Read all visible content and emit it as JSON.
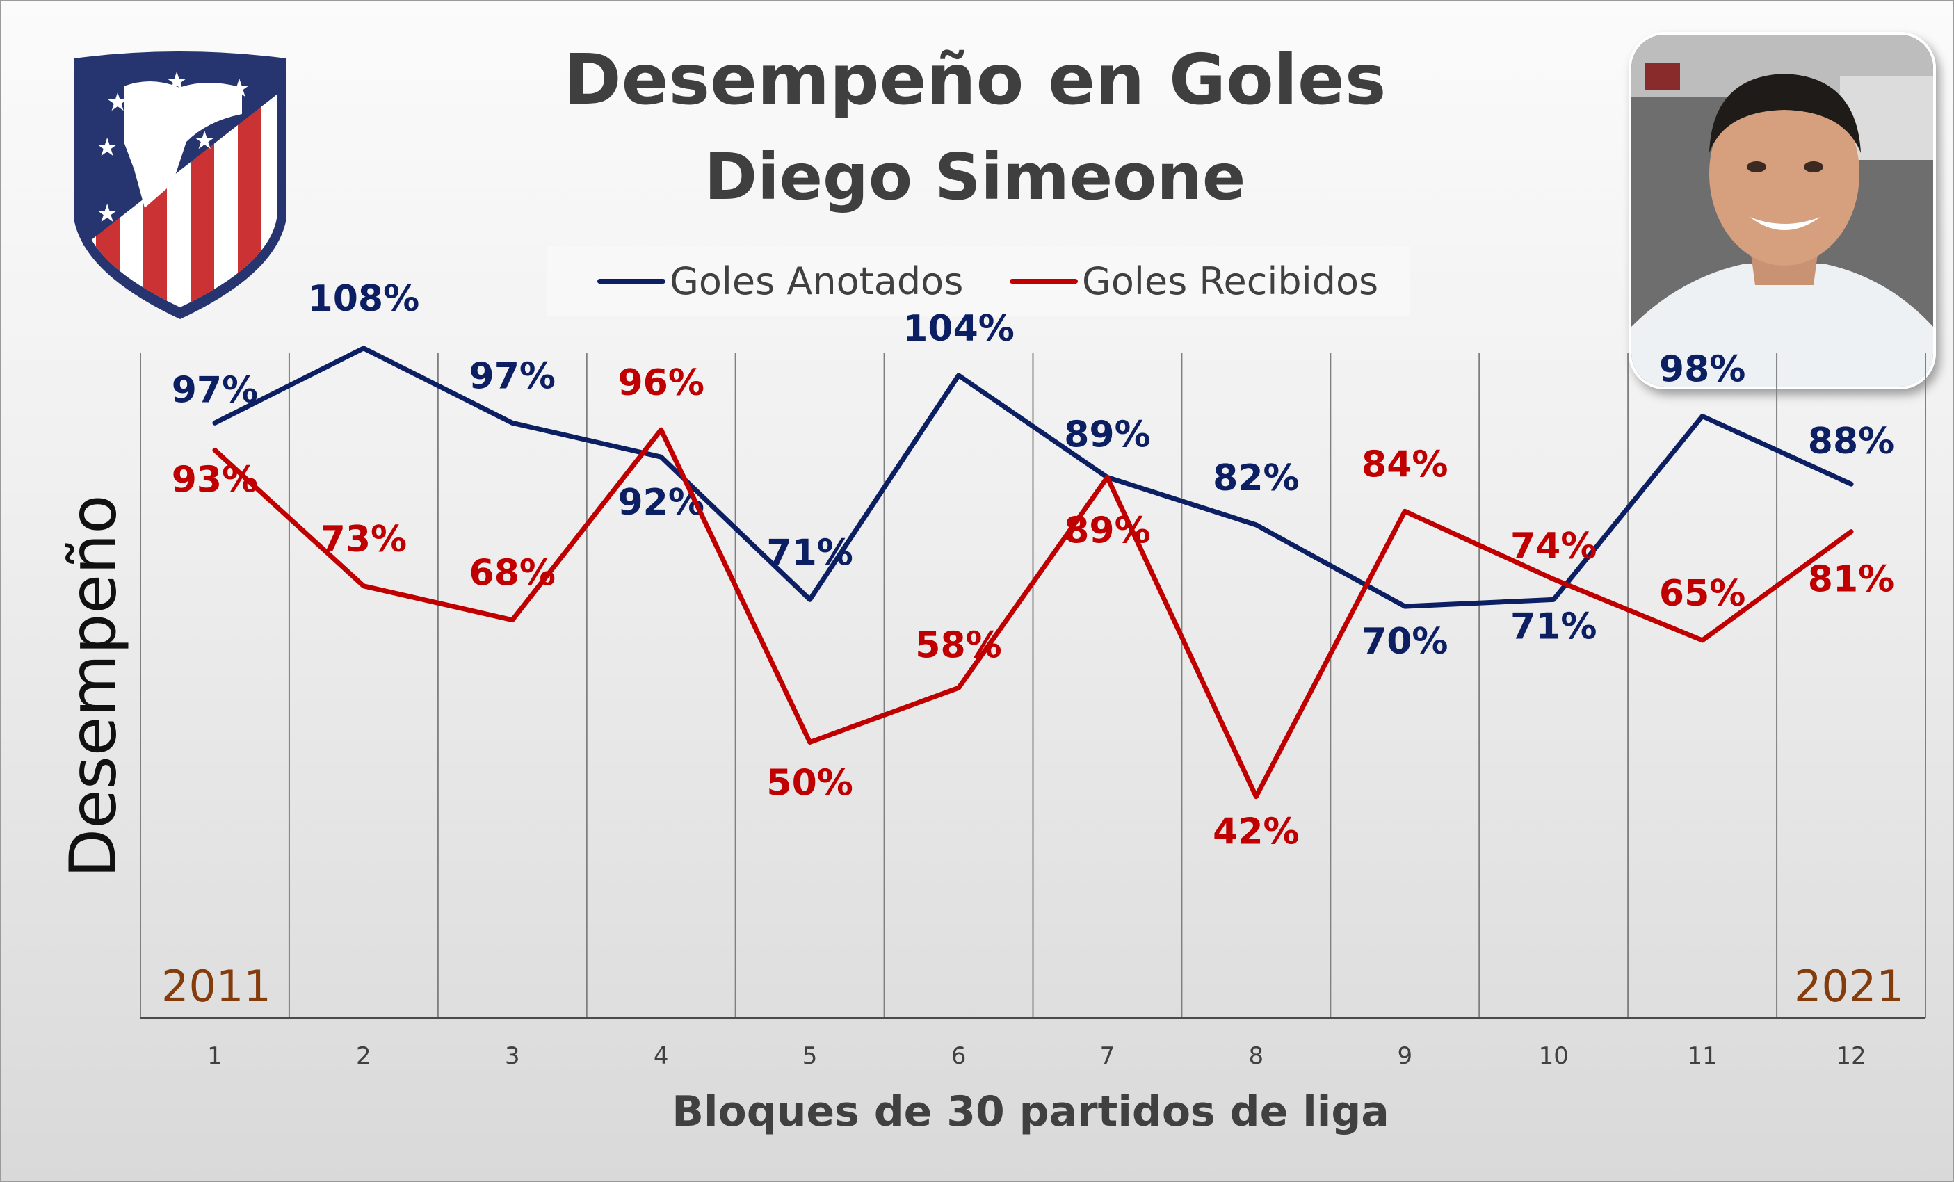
{
  "title": {
    "line1": "Desempeño en Goles",
    "line2": "Diego Simeone"
  },
  "legend": [
    {
      "name": "Goles Anotados",
      "color": "#0d1f63"
    },
    {
      "name": "Goles Recibidos",
      "color": "#c00000"
    }
  ],
  "year_labels": {
    "start": "2011",
    "end": "2021"
  },
  "logo_icon": "atletico-madrid-crest-icon",
  "photo_icon": "coach-portrait-icon",
  "chart_data": {
    "type": "line",
    "title": "Desempeño en Goles Diego Simeone",
    "xlabel": "Bloques de 30 partidos de liga",
    "ylabel": "Desempeño",
    "x": [
      1,
      2,
      3,
      4,
      5,
      6,
      7,
      8,
      9,
      10,
      11,
      12
    ],
    "ylim": [
      20,
      130
    ],
    "grid": "vertical",
    "legend_position": "top-center",
    "series": [
      {
        "name": "Goles Anotados",
        "color": "#0d1f63",
        "values": [
          97,
          108,
          97,
          92,
          71,
          104,
          89,
          82,
          70,
          71,
          98,
          88
        ],
        "labels": [
          "97%",
          "108%",
          "97%",
          "92%",
          "71%",
          "104%",
          "89%",
          "82%",
          "70%",
          "71%",
          "98%",
          "88%"
        ]
      },
      {
        "name": "Goles Recibidos",
        "color": "#c00000",
        "values": [
          93,
          73,
          68,
          96,
          50,
          58,
          89,
          42,
          84,
          74,
          65,
          81
        ],
        "labels": [
          "93%",
          "73%",
          "68%",
          "96%",
          "50%",
          "58%",
          "89%",
          "42%",
          "84%",
          "74%",
          "65%",
          "81%"
        ]
      }
    ]
  }
}
